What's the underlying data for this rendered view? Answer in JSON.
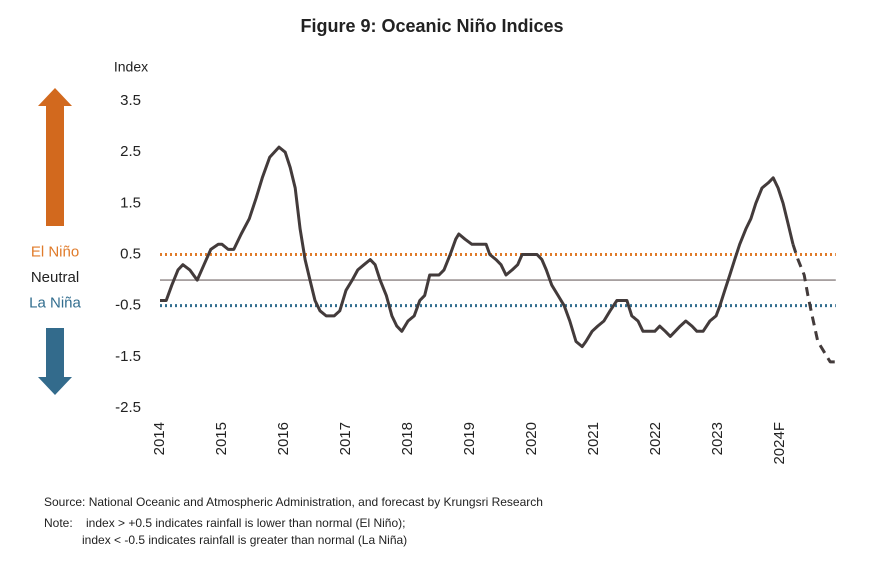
{
  "chart_data": {
    "type": "line",
    "title": "Figure 9: Oceanic Niño Indices",
    "y_label": "Index",
    "xlim": [
      2014,
      2024.9
    ],
    "xticks": [
      2014,
      2015,
      2016,
      2017,
      2018,
      2019,
      2020,
      2021,
      2022,
      2023,
      {
        "value": 2024,
        "label": "2024F"
      }
    ],
    "ylim": [
      -2.5,
      3.5
    ],
    "yticks": [
      -2.5,
      -1.5,
      -0.5,
      0.5,
      1.5,
      2.5,
      3.5
    ],
    "reference_lines": [
      {
        "value": 0.5,
        "label": "El Niño",
        "color": "#e07b2a",
        "style": "dotted"
      },
      {
        "value": 0,
        "label": "Neutral",
        "color": "#8a8080",
        "style": "solid"
      },
      {
        "value": -0.5,
        "label": "La Niña",
        "color": "#336e8f",
        "style": "dotted"
      }
    ],
    "series": [
      {
        "color": "#433b3b",
        "style": "solid",
        "x": [
          2014.0,
          2014.1,
          2014.19,
          2014.29,
          2014.37,
          2014.48,
          2014.6,
          2014.71,
          2014.82,
          2014.94,
          2015.0,
          2015.1,
          2015.19,
          2015.31,
          2015.44,
          2015.55,
          2015.65,
          2015.77,
          2015.92,
          2016.02,
          2016.1,
          2016.18,
          2016.26,
          2016.34,
          2016.42,
          2016.5,
          2016.58,
          2016.68,
          2016.81,
          2016.9,
          2017.0,
          2017.1,
          2017.19,
          2017.29,
          2017.39,
          2017.47,
          2017.55,
          2017.65,
          2017.74,
          2017.82,
          2017.9,
          2018.0,
          2018.1,
          2018.19,
          2018.27,
          2018.35,
          2018.42,
          2018.5,
          2018.58,
          2018.68,
          2018.77,
          2018.82,
          2018.92,
          2019.03,
          2019.16,
          2019.26,
          2019.32,
          2019.42,
          2019.5,
          2019.58,
          2019.68,
          2019.77,
          2019.84,
          2019.9,
          2020.0,
          2020.08,
          2020.16,
          2020.23,
          2020.32,
          2020.42,
          2020.52,
          2020.61,
          2020.71,
          2020.81,
          2020.87,
          2020.97,
          2021.06,
          2021.16,
          2021.26,
          2021.37,
          2021.45,
          2021.53,
          2021.61,
          2021.71,
          2021.79,
          2021.9,
          2021.98,
          2022.06,
          2022.15,
          2022.23,
          2022.31,
          2022.39,
          2022.48,
          2022.58,
          2022.66,
          2022.76,
          2022.87,
          2022.97,
          2023.03,
          2023.11,
          2023.19,
          2023.27,
          2023.35,
          2023.45,
          2023.53,
          2023.61,
          2023.71,
          2023.81,
          2023.89,
          2023.97,
          2024.05,
          2024.13,
          2024.21
        ],
        "values": [
          -0.4,
          -0.4,
          -0.1,
          0.2,
          0.3,
          0.2,
          0.0,
          0.3,
          0.6,
          0.7,
          0.7,
          0.6,
          0.6,
          0.9,
          1.2,
          1.6,
          2.0,
          2.4,
          2.6,
          2.5,
          2.2,
          1.8,
          1.0,
          0.4,
          0.0,
          -0.4,
          -0.6,
          -0.7,
          -0.7,
          -0.6,
          -0.2,
          0.0,
          0.2,
          0.3,
          0.4,
          0.3,
          0.0,
          -0.3,
          -0.7,
          -0.9,
          -1.0,
          -0.8,
          -0.7,
          -0.4,
          -0.3,
          0.1,
          0.1,
          0.1,
          0.2,
          0.5,
          0.8,
          0.9,
          0.8,
          0.7,
          0.7,
          0.7,
          0.5,
          0.4,
          0.3,
          0.1,
          0.2,
          0.3,
          0.5,
          0.5,
          0.5,
          0.5,
          0.4,
          0.2,
          -0.1,
          -0.3,
          -0.5,
          -0.8,
          -1.2,
          -1.3,
          -1.2,
          -1.0,
          -0.9,
          -0.8,
          -0.6,
          -0.4,
          -0.4,
          -0.4,
          -0.7,
          -0.8,
          -1.0,
          -1.0,
          -1.0,
          -0.9,
          -1.0,
          -1.1,
          -1.0,
          -0.9,
          -0.8,
          -0.9,
          -1.0,
          -1.0,
          -0.8,
          -0.7,
          -0.5,
          -0.2,
          0.1,
          0.4,
          0.7,
          1.0,
          1.2,
          1.5,
          1.8,
          1.9,
          2.0,
          1.8,
          1.5,
          1.1,
          0.7
        ]
      },
      {
        "color": "#433b3b",
        "style": "dashed",
        "x": [
          2024.21,
          2024.29,
          2024.39,
          2024.45,
          2024.52,
          2024.61,
          2024.71,
          2024.81,
          2024.89
        ],
        "values": [
          0.7,
          0.4,
          0.1,
          -0.3,
          -0.7,
          -1.2,
          -1.4,
          -1.6,
          -1.6
        ]
      }
    ],
    "source": "Source: National Oceanic and Atmospheric Administration, and forecast by Krungsri Research",
    "note_label": "Note:",
    "notes": [
      "index > +0.5 indicates rainfall is lower than normal (El Niño);",
      "index < -0.5 indicates rainfall is greater than normal (La Niña)"
    ]
  }
}
